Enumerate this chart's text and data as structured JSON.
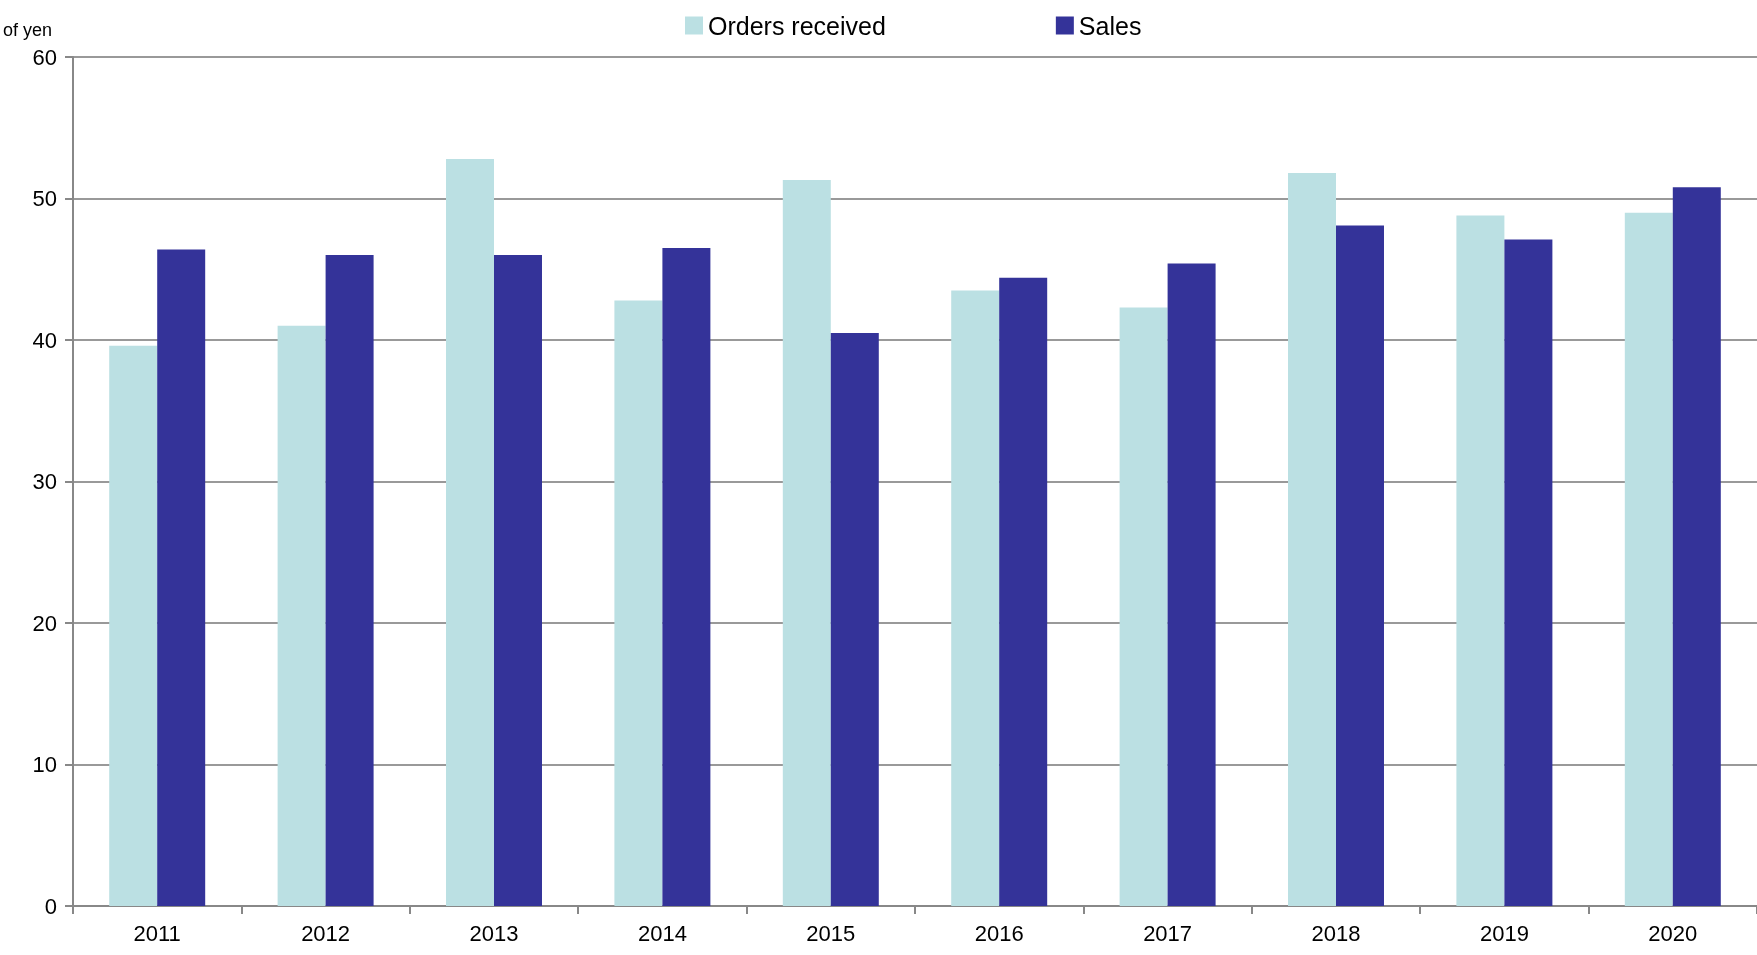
{
  "chart_data": {
    "type": "bar",
    "ylabel": "of yen",
    "categories": [
      "2011",
      "2012",
      "2013",
      "2014",
      "2015",
      "2016",
      "2017",
      "2018",
      "2019",
      "2020"
    ],
    "series": [
      {
        "name": "Orders received",
        "color": "#bbe0e3",
        "values": [
          39.6,
          41.0,
          52.8,
          42.8,
          51.3,
          43.5,
          42.3,
          51.8,
          48.8,
          49.0
        ]
      },
      {
        "name": "Sales",
        "color": "#343399",
        "values": [
          46.4,
          46.0,
          46.0,
          46.5,
          40.5,
          44.4,
          45.4,
          48.1,
          47.1,
          50.8
        ]
      }
    ],
    "ylim": [
      0,
      60
    ],
    "yticks": [
      0,
      10,
      20,
      30,
      40,
      50,
      60
    ],
    "grid": "y",
    "legend": "top"
  }
}
